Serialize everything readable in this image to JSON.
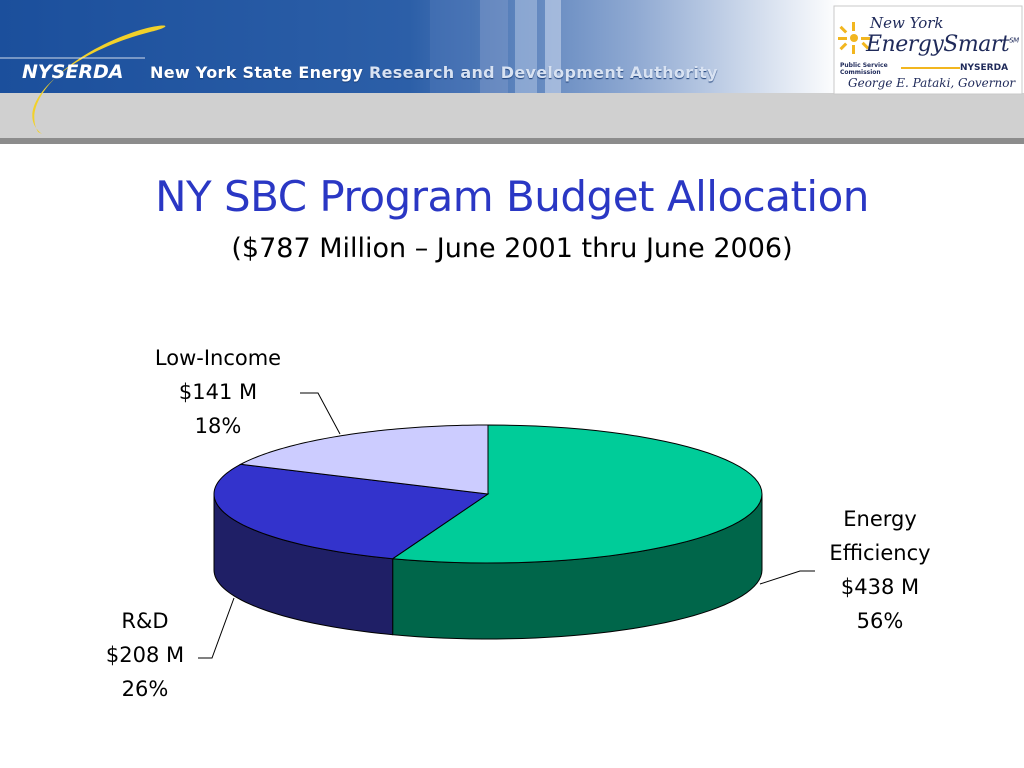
{
  "header": {
    "org_abbr": "NYSERDA",
    "org_name_a": "New York State Energy ",
    "org_name_b": "Research and Development Authority",
    "logo": {
      "new_york": "New York",
      "energy_smart": "EnergySmart",
      "sm": "SM",
      "psc": "Public Service Commission",
      "nyserda": "NYSERDA",
      "governor": "George E. Pataki, Governor"
    },
    "colors": {
      "band": "#1d4f9a",
      "gray_band": "#cfcfcf",
      "rule": "#8a8a8a"
    }
  },
  "title": "NY SBC Program Budget Allocation",
  "subtitle": "($787 Million – June 2001 thru June 2006)",
  "chart_data": {
    "type": "pie",
    "title": "NY SBC Program Budget Allocation",
    "subtitle": "($787 Million – June 2001 thru June 2006)",
    "units": "$ Million",
    "legend": "none",
    "slices": [
      {
        "name": "Energy Efficiency",
        "name_line1": "Energy",
        "name_line2": "Efficiency",
        "value": 438,
        "value_label": "$438 M",
        "percent": 56,
        "percent_label": "56%",
        "color": "#00cc99",
        "side_color": "#00664a"
      },
      {
        "name": "R&D",
        "value": 208,
        "value_label": "$208 M",
        "percent": 26,
        "percent_label": "26%",
        "color": "#3333cc",
        "side_color": "#1f1f66"
      },
      {
        "name": "Low-Income",
        "value": 141,
        "value_label": "$141 M",
        "percent": 18,
        "percent_label": "18%",
        "color": "#ccccff",
        "side_color": "#8888aa"
      }
    ]
  }
}
